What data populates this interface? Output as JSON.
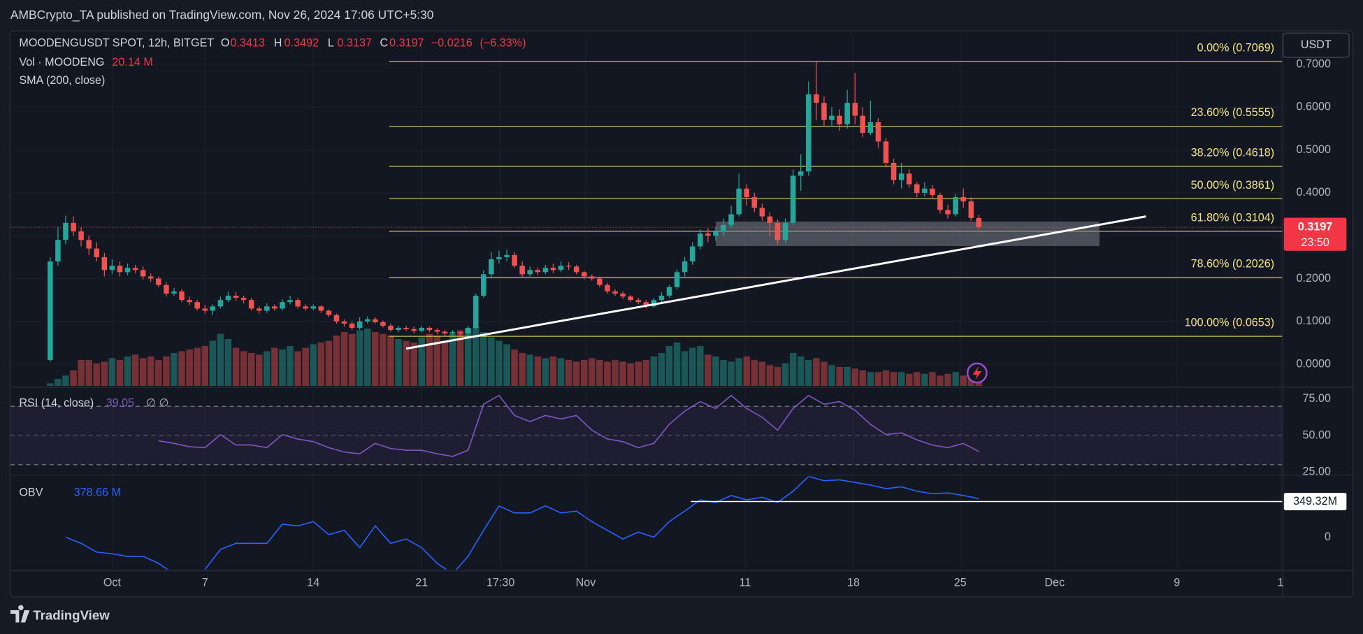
{
  "header": {
    "publisher": "AMBCrypto_TA published on TradingView.com, Nov 26, 2024 17:06 UTC+5:30"
  },
  "currency_button": "USDT",
  "footer": {
    "brand": "TradingView"
  },
  "chart_data": [
    {
      "type": "candlestick",
      "title": "MOODENGUSDT SPOT, 12h, BITGET",
      "legend": {
        "o": "O",
        "open": 0.3413,
        "h": "H",
        "high": 0.3492,
        "l": "L",
        "low": 0.3137,
        "c": "C",
        "close": 0.3197,
        "change": {
          "value": -0.0216,
          "label": "−0.0216"
        },
        "change_pct": {
          "value": -6.33,
          "label": "(−6.33%)"
        }
      },
      "indicators": [
        "SMA (200, close)"
      ],
      "up_color": "#26a69a",
      "down_color": "#ef5350",
      "xlim": [
        -6.57,
        75.6
      ],
      "xticks": [
        {
          "value": 0,
          "label": "Oct"
        },
        {
          "value": 6,
          "label": "7"
        },
        {
          "value": 13,
          "label": "14"
        },
        {
          "value": 20,
          "label": "21"
        },
        {
          "value": 25.1,
          "label": "17:30"
        },
        {
          "value": 30.6,
          "label": "Nov"
        },
        {
          "value": 40.9,
          "label": "11"
        },
        {
          "value": 47.9,
          "label": "18"
        },
        {
          "value": 54.8,
          "label": "25"
        },
        {
          "value": 60.9,
          "label": "Dec"
        },
        {
          "value": 68.8,
          "label": "9"
        },
        {
          "value": 75.5,
          "label": "1"
        }
      ],
      "ylim": [
        -0.0507,
        0.7649
      ],
      "yticks": [
        {
          "value": 0,
          "label": "0.0000"
        },
        {
          "value": 0.1,
          "label": "0.1000"
        },
        {
          "value": 0.2,
          "label": "0.2000"
        },
        {
          "value": 0.3,
          "label": "0.3000"
        },
        {
          "value": 0.4,
          "label": "0.4000"
        },
        {
          "value": 0.5,
          "label": "0.5000"
        },
        {
          "value": 0.6,
          "label": "0.6000"
        },
        {
          "value": 0.7,
          "label": "0.7000"
        }
      ],
      "grid": true,
      "x": [
        -4,
        -3.5,
        -3,
        -2.5,
        -2,
        -1.5,
        -1,
        -0.5,
        0,
        0.5,
        1,
        1.5,
        2,
        2.5,
        3,
        3.5,
        4,
        4.5,
        5,
        5.5,
        6,
        6.5,
        7,
        7.5,
        8,
        8.5,
        9,
        9.5,
        10,
        10.5,
        11,
        11.5,
        12,
        12.5,
        13,
        13.5,
        14,
        14.5,
        15,
        15.5,
        16,
        16.5,
        17,
        17.5,
        18,
        18.5,
        19,
        19.5,
        20,
        20.5,
        21,
        21.5,
        22,
        22.5,
        23,
        23.5,
        24,
        24.5,
        25,
        25.5,
        26,
        26.5,
        27,
        27.5,
        28,
        28.5,
        29,
        29.5,
        30,
        30.5,
        31,
        31.5,
        32,
        32.5,
        33,
        33.5,
        34,
        34.5,
        35,
        35.5,
        36,
        36.5,
        37,
        37.5,
        38,
        38.5,
        39,
        39.5,
        40,
        40.5,
        41,
        41.5,
        42,
        42.5,
        43,
        43.5,
        44,
        44.5,
        45,
        45.5,
        46,
        46.5,
        47,
        47.5,
        48,
        48.5,
        49,
        49.5,
        50,
        50.5,
        51,
        51.5,
        52,
        52.5,
        53,
        53.5,
        54,
        54.5,
        55,
        55.5,
        56
      ],
      "open": [
        0.01,
        0.24,
        0.29,
        0.33,
        0.31,
        0.29,
        0.27,
        0.25,
        0.22,
        0.23,
        0.215,
        0.225,
        0.22,
        0.205,
        0.2,
        0.185,
        0.165,
        0.17,
        0.15,
        0.145,
        0.13,
        0.125,
        0.135,
        0.15,
        0.16,
        0.155,
        0.15,
        0.13,
        0.125,
        0.135,
        0.13,
        0.145,
        0.15,
        0.135,
        0.13,
        0.135,
        0.125,
        0.115,
        0.1,
        0.095,
        0.085,
        0.1,
        0.105,
        0.098,
        0.09,
        0.08,
        0.085,
        0.082,
        0.078,
        0.085,
        0.08,
        0.076,
        0.072,
        0.075,
        0.072,
        0.085,
        0.16,
        0.21,
        0.245,
        0.25,
        0.255,
        0.23,
        0.21,
        0.22,
        0.215,
        0.225,
        0.22,
        0.23,
        0.228,
        0.215,
        0.205,
        0.2,
        0.185,
        0.17,
        0.165,
        0.158,
        0.15,
        0.145,
        0.135,
        0.15,
        0.16,
        0.18,
        0.215,
        0.24,
        0.275,
        0.305,
        0.3,
        0.31,
        0.325,
        0.35,
        0.41,
        0.39,
        0.365,
        0.345,
        0.33,
        0.29,
        0.33,
        0.44,
        0.45,
        0.63,
        0.61,
        0.57,
        0.58,
        0.56,
        0.61,
        0.58,
        0.54,
        0.565,
        0.52,
        0.47,
        0.43,
        0.445,
        0.42,
        0.4,
        0.41,
        0.395,
        0.36,
        0.35,
        0.39,
        0.38,
        0.3413
      ],
      "high": [
        0.25,
        0.32,
        0.347,
        0.345,
        0.32,
        0.3,
        0.285,
        0.26,
        0.245,
        0.24,
        0.235,
        0.232,
        0.228,
        0.212,
        0.205,
        0.192,
        0.178,
        0.175,
        0.158,
        0.15,
        0.138,
        0.14,
        0.158,
        0.17,
        0.168,
        0.16,
        0.155,
        0.135,
        0.142,
        0.14,
        0.152,
        0.16,
        0.155,
        0.14,
        0.14,
        0.138,
        0.128,
        0.118,
        0.105,
        0.1,
        0.11,
        0.112,
        0.11,
        0.102,
        0.095,
        0.09,
        0.09,
        0.088,
        0.09,
        0.088,
        0.084,
        0.08,
        0.08,
        0.078,
        0.09,
        0.165,
        0.22,
        0.262,
        0.265,
        0.268,
        0.262,
        0.24,
        0.228,
        0.226,
        0.232,
        0.235,
        0.24,
        0.238,
        0.232,
        0.218,
        0.21,
        0.205,
        0.19,
        0.175,
        0.17,
        0.162,
        0.155,
        0.15,
        0.155,
        0.168,
        0.185,
        0.222,
        0.25,
        0.285,
        0.315,
        0.318,
        0.32,
        0.34,
        0.37,
        0.445,
        0.42,
        0.4,
        0.375,
        0.355,
        0.338,
        0.34,
        0.455,
        0.49,
        0.66,
        0.7069,
        0.625,
        0.6,
        0.595,
        0.64,
        0.68,
        0.6,
        0.615,
        0.575,
        0.528,
        0.48,
        0.47,
        0.455,
        0.425,
        0.425,
        0.418,
        0.4,
        0.372,
        0.398,
        0.41,
        0.39,
        0.3492
      ],
      "low": [
        0.005,
        0.23,
        0.28,
        0.3,
        0.275,
        0.255,
        0.24,
        0.205,
        0.21,
        0.205,
        0.208,
        0.212,
        0.198,
        0.192,
        0.18,
        0.158,
        0.16,
        0.145,
        0.138,
        0.125,
        0.118,
        0.115,
        0.13,
        0.145,
        0.148,
        0.142,
        0.125,
        0.118,
        0.12,
        0.125,
        0.125,
        0.14,
        0.13,
        0.125,
        0.126,
        0.12,
        0.11,
        0.095,
        0.088,
        0.08,
        0.08,
        0.095,
        0.095,
        0.086,
        0.076,
        0.075,
        0.078,
        0.072,
        0.074,
        0.075,
        0.07,
        0.066,
        0.068,
        0.065,
        0.068,
        0.082,
        0.155,
        0.2,
        0.235,
        0.24,
        0.225,
        0.202,
        0.205,
        0.208,
        0.21,
        0.212,
        0.215,
        0.22,
        0.21,
        0.198,
        0.195,
        0.18,
        0.165,
        0.16,
        0.152,
        0.145,
        0.14,
        0.13,
        0.132,
        0.145,
        0.155,
        0.175,
        0.205,
        0.232,
        0.268,
        0.285,
        0.288,
        0.3,
        0.318,
        0.345,
        0.37,
        0.355,
        0.335,
        0.3,
        0.28,
        0.282,
        0.325,
        0.405,
        0.44,
        0.57,
        0.555,
        0.555,
        0.545,
        0.55,
        0.56,
        0.53,
        0.535,
        0.505,
        0.46,
        0.42,
        0.41,
        0.412,
        0.39,
        0.392,
        0.385,
        0.352,
        0.34,
        0.345,
        0.365,
        0.335,
        0.3137
      ],
      "close": [
        0.24,
        0.29,
        0.33,
        0.31,
        0.29,
        0.27,
        0.25,
        0.22,
        0.23,
        0.215,
        0.225,
        0.22,
        0.205,
        0.2,
        0.185,
        0.165,
        0.17,
        0.15,
        0.145,
        0.13,
        0.125,
        0.135,
        0.15,
        0.16,
        0.155,
        0.15,
        0.13,
        0.125,
        0.135,
        0.13,
        0.145,
        0.15,
        0.135,
        0.13,
        0.135,
        0.125,
        0.115,
        0.1,
        0.095,
        0.085,
        0.1,
        0.105,
        0.098,
        0.09,
        0.08,
        0.085,
        0.082,
        0.078,
        0.085,
        0.08,
        0.076,
        0.072,
        0.075,
        0.072,
        0.085,
        0.16,
        0.21,
        0.245,
        0.25,
        0.255,
        0.23,
        0.21,
        0.22,
        0.215,
        0.225,
        0.22,
        0.23,
        0.228,
        0.215,
        0.205,
        0.2,
        0.185,
        0.17,
        0.165,
        0.158,
        0.15,
        0.145,
        0.135,
        0.15,
        0.16,
        0.18,
        0.215,
        0.24,
        0.275,
        0.305,
        0.3,
        0.31,
        0.325,
        0.35,
        0.41,
        0.39,
        0.365,
        0.345,
        0.33,
        0.29,
        0.33,
        0.44,
        0.45,
        0.63,
        0.61,
        0.57,
        0.58,
        0.56,
        0.61,
        0.58,
        0.54,
        0.565,
        0.52,
        0.47,
        0.43,
        0.445,
        0.42,
        0.4,
        0.41,
        0.395,
        0.36,
        0.35,
        0.39,
        0.38,
        0.3413,
        0.3197
      ],
      "fib": {
        "x_start": 17.9,
        "color": "#c9bd5c",
        "levels": [
          {
            "value": 0.7069,
            "label": "0.00% (0.7069)"
          },
          {
            "value": 0.5555,
            "label": "23.60% (0.5555)"
          },
          {
            "value": 0.4618,
            "label": "38.20% (0.4618)"
          },
          {
            "value": 0.3861,
            "label": "50.00% (0.3861)"
          },
          {
            "value": 0.3104,
            "label": "61.80% (0.3104)"
          },
          {
            "value": 0.2026,
            "label": "78.60% (0.2026)"
          },
          {
            "value": 0.0653,
            "label": "100.00% (0.0653)"
          }
        ]
      },
      "trendline": {
        "x": [
          19,
          66.8
        ],
        "y": [
          0.0365,
          0.345
        ],
        "color": "#ffffff"
      },
      "zone": {
        "x": [
          39,
          63.8
        ],
        "y": [
          0.276,
          0.333
        ],
        "color": "#787b86"
      },
      "last_price": {
        "value": 0.3197,
        "label": "0.3197"
      },
      "countdown": "23:50"
    },
    {
      "type": "bar",
      "title": "Vol · MOODENG",
      "current": {
        "value": 20.14,
        "label": "20.14 M"
      },
      "ylim": [
        0,
        400
      ],
      "values": [
        15,
        40,
        60,
        90,
        150,
        150,
        130,
        140,
        160,
        150,
        170,
        180,
        160,
        170,
        150,
        170,
        190,
        200,
        210,
        220,
        230,
        260,
        300,
        270,
        220,
        200,
        190,
        180,
        200,
        220,
        210,
        230,
        200,
        220,
        240,
        250,
        260,
        290,
        310,
        300,
        320,
        330,
        310,
        300,
        290,
        270,
        260,
        250,
        280,
        300,
        290,
        260,
        300,
        320,
        330,
        340,
        310,
        280,
        260,
        240,
        210,
        190,
        180,
        170,
        160,
        170,
        160,
        150,
        140,
        150,
        160,
        150,
        140,
        150,
        140,
        130,
        140,
        150,
        170,
        190,
        230,
        250,
        200,
        220,
        230,
        180,
        170,
        150,
        140,
        160,
        170,
        150,
        140,
        120,
        110,
        130,
        190,
        170,
        150,
        160,
        140,
        120,
        110,
        110,
        100,
        90,
        80,
        80,
        90,
        80,
        80,
        70,
        80,
        70,
        80,
        60,
        70,
        80,
        60,
        50,
        20.14
      ]
    },
    {
      "type": "line",
      "title": "RSI (14, close)",
      "current": 39.05,
      "extra": "∅ ∅",
      "color": "#7e57c2",
      "ylim": [
        23.8,
        82.1
      ],
      "yticks": [
        {
          "value": 75,
          "label": "75.00"
        },
        {
          "value": 50,
          "label": "50.00"
        },
        {
          "value": 25,
          "label": "25.00"
        }
      ],
      "bands": [
        30,
        70
      ],
      "midline": 50,
      "x": [
        3,
        4,
        5,
        6,
        7,
        8,
        9,
        10,
        11,
        12,
        13,
        14,
        15,
        16,
        17,
        18,
        19,
        20,
        21,
        22,
        23,
        24,
        25,
        26,
        27,
        28,
        29,
        30,
        31,
        32,
        33,
        34,
        35,
        36,
        37,
        38,
        39,
        40,
        41,
        42,
        43,
        44,
        45,
        46,
        47,
        48,
        49,
        50,
        51,
        52,
        53,
        54,
        55,
        56
      ],
      "values": [
        46.4,
        44.6,
        42.3,
        41.7,
        50.6,
        43.5,
        43.5,
        41.7,
        50.6,
        47.6,
        45.8,
        41.7,
        38.7,
        37.5,
        44.6,
        41.1,
        39.9,
        39.9,
        37.5,
        35.7,
        39.9,
        71.4,
        77.4,
        63.7,
        59.5,
        63.7,
        61.3,
        63.7,
        53.6,
        47.6,
        45.8,
        41.7,
        44.6,
        57.7,
        66.7,
        73.2,
        68.5,
        77.4,
        68.5,
        62.5,
        53.6,
        68.5,
        77.4,
        71.4,
        73.2,
        67.3,
        57.7,
        50.6,
        51.8,
        47.0,
        43.5,
        41.7,
        44.6,
        39.05
      ]
    },
    {
      "type": "line",
      "title": "OBV",
      "current": {
        "value": 378.66,
        "label": "378.66 M"
      },
      "color": "#2962ff",
      "ylim": [
        -315,
        596
      ],
      "yticks": [
        0
      ],
      "level": {
        "value": 349.32,
        "label": "349.32M",
        "x_start": 37.4
      },
      "x": [
        -3,
        -2,
        -1,
        0,
        1,
        2,
        3,
        4,
        5,
        6,
        7,
        8,
        9,
        10,
        11,
        12,
        13,
        14,
        15,
        16,
        17,
        18,
        19,
        20,
        21,
        22,
        23,
        24,
        25,
        26,
        27,
        28,
        29,
        30,
        31,
        32,
        33,
        34,
        35,
        36,
        37,
        38,
        39,
        40,
        41,
        42,
        43,
        44,
        45,
        46,
        47,
        48,
        49,
        50,
        51,
        52,
        53,
        54,
        55,
        56
      ],
      "values": [
        0,
        -60,
        -145,
        -162,
        -187,
        -187,
        -256,
        -358,
        -420,
        -315,
        -119,
        -60,
        -60,
        -60,
        128,
        111,
        153,
        26,
        68,
        -102,
        111,
        -60,
        -17,
        -102,
        -256,
        -358,
        -187,
        68,
        307,
        238,
        238,
        307,
        238,
        256,
        153,
        68,
        -17,
        51,
        0,
        153,
        256,
        366,
        341,
        409,
        366,
        392,
        341,
        451,
        596,
        554,
        562,
        537,
        511,
        477,
        494,
        451,
        426,
        434,
        409,
        378.66
      ]
    }
  ]
}
